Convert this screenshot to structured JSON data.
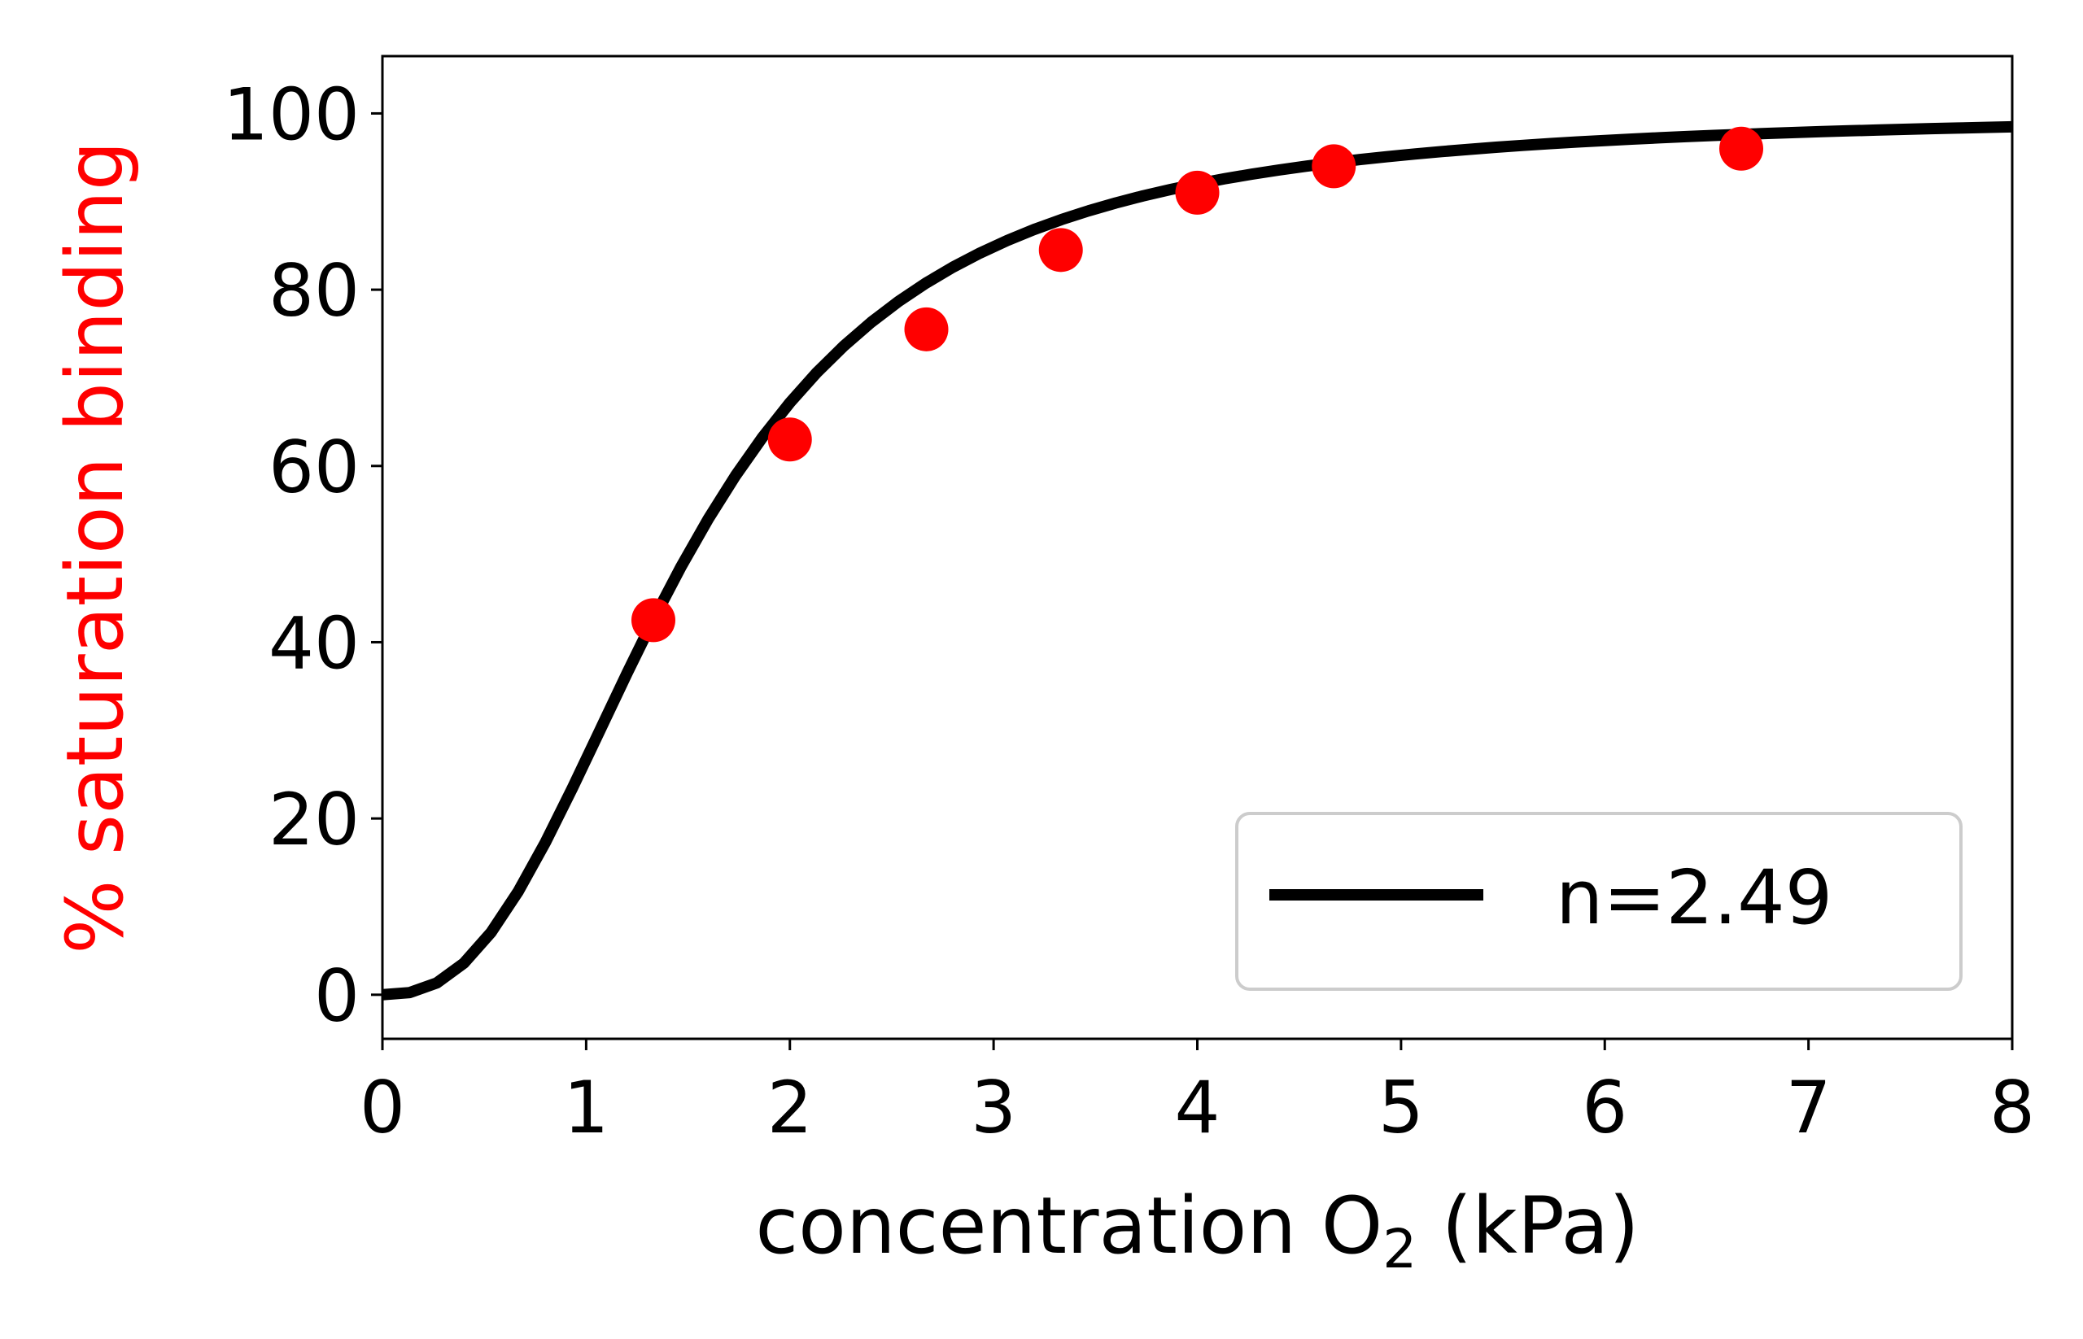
{
  "chart_data": {
    "type": "line",
    "title": "",
    "xlabel_main": "concentration O",
    "xlabel_sub": "2",
    "xlabel_tail": " (kPa)",
    "ylabel": "% saturation binding",
    "xlim": [
      0,
      8
    ],
    "ylim": [
      -5,
      106.5
    ],
    "xticks": [
      0,
      1,
      2,
      3,
      4,
      5,
      6,
      7,
      8
    ],
    "yticks": [
      0,
      20,
      40,
      60,
      80,
      100
    ],
    "grid": false,
    "legend_position": "lower-right",
    "colors": {
      "curve": "#000000",
      "points": "#ff0000",
      "ylabel": "#ff0000",
      "axes": "#000000",
      "legend_border": "#cccccc"
    },
    "series": [
      {
        "name": "n=2.49",
        "kind": "line",
        "hill_coefficient": 2.49,
        "half_saturation": 1.5
      },
      {
        "kind": "scatter",
        "x": [
          1.33,
          2.0,
          2.67,
          3.33,
          4.0,
          4.67,
          6.67
        ],
        "y": [
          42.5,
          63.0,
          75.5,
          84.5,
          91.0,
          94.0,
          96.0
        ]
      }
    ]
  }
}
